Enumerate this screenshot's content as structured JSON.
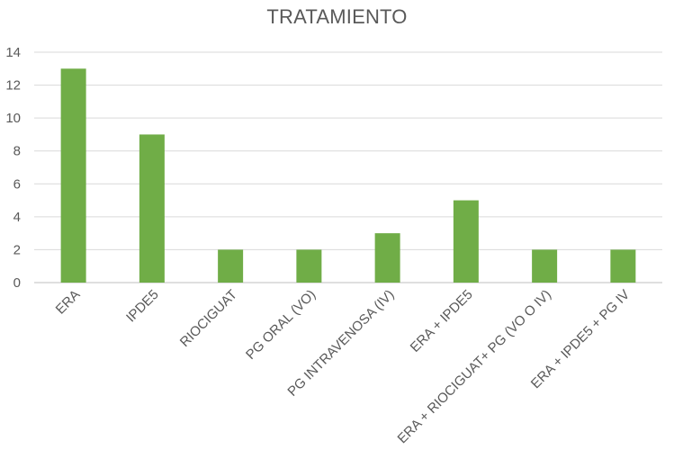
{
  "chart_data": {
    "type": "bar",
    "title": "TRATAMIENTO",
    "categories": [
      "ERA",
      "IPDE5",
      "RIOCIGUAT",
      "PG ORAL (VO)",
      "PG INTRAVENOSA (IV)",
      "ERA + IPDE5",
      "ERA + RIOCIGUAT+ PG (VO O IV)",
      "ERA + IPDE5 + PG IV"
    ],
    "values": [
      13,
      9,
      2,
      2,
      3,
      5,
      2,
      2
    ],
    "ylim": [
      0,
      14
    ],
    "yticks": [
      0,
      2,
      4,
      6,
      8,
      10,
      12,
      14
    ],
    "xlabel": "",
    "ylabel": "",
    "grid": true,
    "legend": "none",
    "bar_color": "#70ad47"
  }
}
